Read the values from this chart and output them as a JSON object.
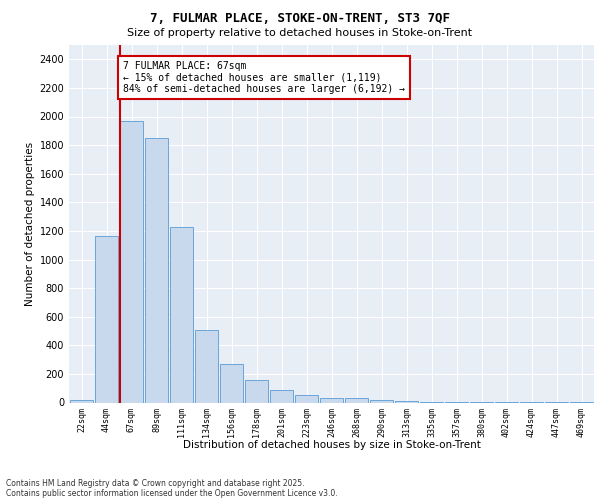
{
  "title1": "7, FULMAR PLACE, STOKE-ON-TRENT, ST3 7QF",
  "title2": "Size of property relative to detached houses in Stoke-on-Trent",
  "xlabel": "Distribution of detached houses by size in Stoke-on-Trent",
  "ylabel": "Number of detached properties",
  "categories": [
    "22sqm",
    "44sqm",
    "67sqm",
    "89sqm",
    "111sqm",
    "134sqm",
    "156sqm",
    "178sqm",
    "201sqm",
    "223sqm",
    "246sqm",
    "268sqm",
    "290sqm",
    "313sqm",
    "335sqm",
    "357sqm",
    "380sqm",
    "402sqm",
    "424sqm",
    "447sqm",
    "469sqm"
  ],
  "values": [
    20,
    1165,
    1970,
    1850,
    1230,
    510,
    270,
    155,
    85,
    50,
    30,
    28,
    15,
    8,
    5,
    3,
    2,
    2,
    1,
    1,
    1
  ],
  "bar_color": "#c9d9ed",
  "bar_edge_color": "#5b9bd5",
  "highlight_index": 2,
  "highlight_line_color": "#cc0000",
  "highlight_box_color": "#cc0000",
  "annotation_title": "7 FULMAR PLACE: 67sqm",
  "annotation_line1": "← 15% of detached houses are smaller (1,119)",
  "annotation_line2": "84% of semi-detached houses are larger (6,192) →",
  "ylim": [
    0,
    2500
  ],
  "yticks": [
    0,
    200,
    400,
    600,
    800,
    1000,
    1200,
    1400,
    1600,
    1800,
    2000,
    2200,
    2400
  ],
  "bg_color": "#e8eef6",
  "fig_bg_color": "#ffffff",
  "footer1": "Contains HM Land Registry data © Crown copyright and database right 2025.",
  "footer2": "Contains public sector information licensed under the Open Government Licence v3.0."
}
